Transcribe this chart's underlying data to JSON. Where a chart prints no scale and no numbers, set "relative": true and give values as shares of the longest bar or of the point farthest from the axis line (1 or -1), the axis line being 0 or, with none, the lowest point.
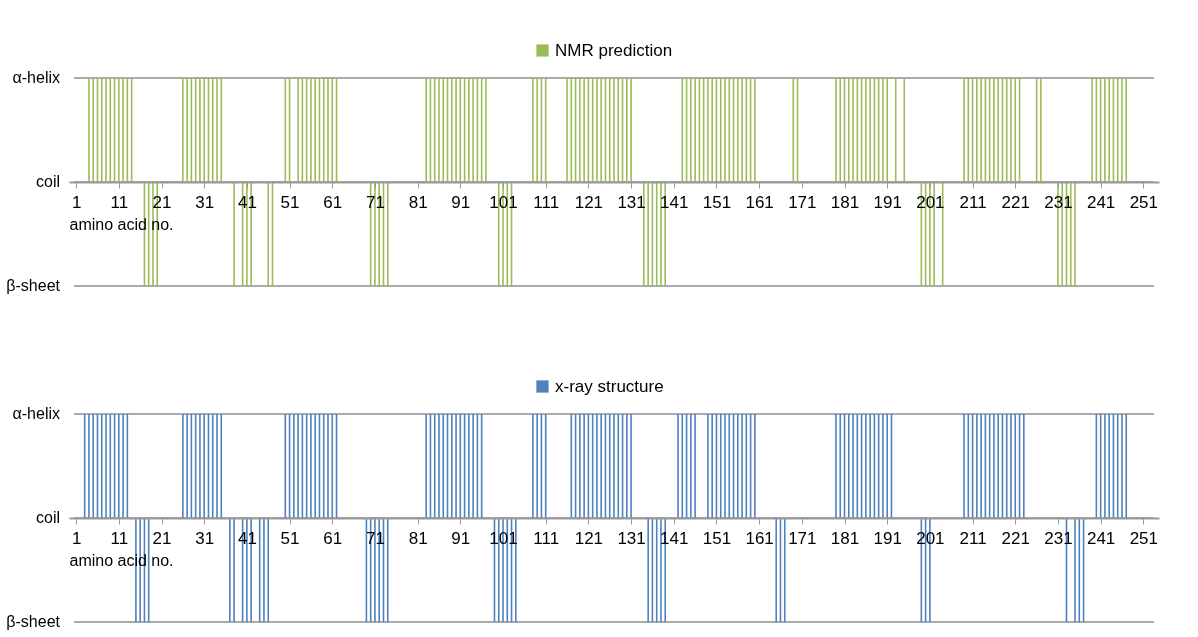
{
  "chart_data": [
    {
      "type": "bar",
      "xlabel": "amino acid no.",
      "legend": "top",
      "grid": "y",
      "relative": true,
      "xlim": [
        0.5,
        253.5
      ],
      "xticks": [
        1,
        11,
        21,
        31,
        41,
        51,
        61,
        71,
        81,
        91,
        101,
        111,
        121,
        131,
        141,
        151,
        161,
        171,
        181,
        191,
        201,
        211,
        221,
        231,
        241,
        251
      ],
      "annotations": [
        "α-helix",
        "coil",
        "β-sheet"
      ],
      "x": [
        1,
        2,
        3,
        4,
        5,
        6,
        7,
        8,
        9,
        10,
        11,
        12,
        13,
        14,
        15,
        16,
        17,
        18,
        19,
        20,
        21,
        22,
        23,
        24,
        25,
        26,
        27,
        28,
        29,
        30,
        31,
        32,
        33,
        34,
        35,
        36,
        37,
        38,
        39,
        40,
        41,
        42,
        43,
        44,
        45,
        46,
        47,
        48,
        49,
        50,
        51,
        52,
        53,
        54,
        55,
        56,
        57,
        58,
        59,
        60,
        61,
        62,
        63,
        64,
        65,
        66,
        67,
        68,
        69,
        70,
        71,
        72,
        73,
        74,
        75,
        76,
        77,
        78,
        79,
        80,
        81,
        82,
        83,
        84,
        85,
        86,
        87,
        88,
        89,
        90,
        91,
        92,
        93,
        94,
        95,
        96,
        97,
        98,
        99,
        100,
        101,
        102,
        103,
        104,
        105,
        106,
        107,
        108,
        109,
        110,
        111,
        112,
        113,
        114,
        115,
        116,
        117,
        118,
        119,
        120,
        121,
        122,
        123,
        124,
        125,
        126,
        127,
        128,
        129,
        130,
        131,
        132,
        133,
        134,
        135,
        136,
        137,
        138,
        139,
        140,
        141,
        142,
        143,
        144,
        145,
        146,
        147,
        148,
        149,
        150,
        151,
        152,
        153,
        154,
        155,
        156,
        157,
        158,
        159,
        160,
        161,
        162,
        163,
        164,
        165,
        166,
        167,
        168,
        169,
        170,
        171,
        172,
        173,
        174,
        175,
        176,
        177,
        178,
        179,
        180,
        181,
        182,
        183,
        184,
        185,
        186,
        187,
        188,
        189,
        190,
        191,
        192,
        193,
        194,
        195,
        196,
        197,
        198,
        199,
        200,
        201,
        202,
        203,
        204,
        205,
        206,
        207,
        208,
        209,
        210,
        211,
        212,
        213,
        214,
        215,
        216,
        217,
        218,
        219,
        220,
        221,
        222,
        223,
        224,
        225,
        226,
        227,
        228,
        229,
        230,
        231,
        232,
        233,
        234,
        235,
        236,
        237,
        238,
        239,
        240,
        241,
        242,
        243,
        244,
        245,
        246,
        247,
        248,
        249,
        250,
        251,
        252,
        253
      ],
      "series": [
        {
          "name": "NMR prediction",
          "color": "#9bbb59",
          "values": [
            0,
            0,
            0,
            1,
            1,
            1,
            1,
            1,
            1,
            1,
            1,
            1,
            1,
            1,
            0,
            0,
            -1,
            -1,
            -1,
            -1,
            0,
            0,
            0,
            0,
            0,
            1,
            1,
            1,
            1,
            1,
            1,
            1,
            1,
            1,
            1,
            0,
            0,
            -1,
            0,
            -1,
            -1,
            -1,
            0,
            0,
            0,
            -1,
            -1,
            0,
            0,
            1,
            1,
            0,
            1,
            1,
            1,
            1,
            1,
            1,
            1,
            1,
            1,
            1,
            0,
            0,
            0,
            0,
            0,
            0,
            0,
            -1,
            -1,
            -1,
            -1,
            -1,
            0,
            0,
            0,
            0,
            0,
            0,
            0,
            0,
            1,
            1,
            1,
            1,
            1,
            1,
            1,
            1,
            1,
            1,
            1,
            1,
            1,
            1,
            1,
            0,
            0,
            -1,
            -1,
            -1,
            -1,
            0,
            0,
            0,
            0,
            1,
            1,
            1,
            1,
            0,
            0,
            0,
            0,
            1,
            1,
            1,
            1,
            1,
            1,
            1,
            1,
            1,
            1,
            1,
            1,
            1,
            1,
            1,
            1,
            0,
            0,
            -1,
            -1,
            -1,
            -1,
            -1,
            -1,
            0,
            0,
            0,
            1,
            1,
            1,
            1,
            1,
            1,
            1,
            1,
            1,
            1,
            1,
            1,
            1,
            1,
            1,
            1,
            1,
            1,
            0,
            0,
            0,
            0,
            0,
            0,
            0,
            0,
            1,
            1,
            0,
            0,
            0,
            0,
            0,
            0,
            0,
            0,
            1,
            1,
            1,
            1,
            1,
            1,
            1,
            1,
            1,
            1,
            1,
            1,
            1,
            0,
            1,
            0,
            1,
            0,
            0,
            0,
            -1,
            -1,
            -1,
            -1,
            0,
            -1,
            0,
            0,
            0,
            0,
            1,
            1,
            1,
            1,
            1,
            1,
            1,
            1,
            1,
            1,
            1,
            1,
            1,
            1,
            0,
            0,
            0,
            1,
            1,
            0,
            0,
            0,
            -1,
            -1,
            -1,
            -1,
            -1,
            0,
            0,
            0,
            1,
            1,
            1,
            1,
            1,
            1,
            1,
            1,
            1,
            0,
            0,
            0,
            0,
            0,
            0
          ]
        }
      ]
    },
    {
      "type": "bar",
      "xlabel": "amino acid no.",
      "legend": "top",
      "grid": "y",
      "relative": true,
      "xlim": [
        0.5,
        253.5
      ],
      "xticks": [
        1,
        11,
        21,
        31,
        41,
        51,
        61,
        71,
        81,
        91,
        101,
        111,
        121,
        131,
        141,
        151,
        161,
        171,
        181,
        191,
        201,
        211,
        221,
        231,
        241,
        251
      ],
      "annotations": [
        "α-helix",
        "coil",
        "β-sheet"
      ],
      "x": [
        1,
        2,
        3,
        4,
        5,
        6,
        7,
        8,
        9,
        10,
        11,
        12,
        13,
        14,
        15,
        16,
        17,
        18,
        19,
        20,
        21,
        22,
        23,
        24,
        25,
        26,
        27,
        28,
        29,
        30,
        31,
        32,
        33,
        34,
        35,
        36,
        37,
        38,
        39,
        40,
        41,
        42,
        43,
        44,
        45,
        46,
        47,
        48,
        49,
        50,
        51,
        52,
        53,
        54,
        55,
        56,
        57,
        58,
        59,
        60,
        61,
        62,
        63,
        64,
        65,
        66,
        67,
        68,
        69,
        70,
        71,
        72,
        73,
        74,
        75,
        76,
        77,
        78,
        79,
        80,
        81,
        82,
        83,
        84,
        85,
        86,
        87,
        88,
        89,
        90,
        91,
        92,
        93,
        94,
        95,
        96,
        97,
        98,
        99,
        100,
        101,
        102,
        103,
        104,
        105,
        106,
        107,
        108,
        109,
        110,
        111,
        112,
        113,
        114,
        115,
        116,
        117,
        118,
        119,
        120,
        121,
        122,
        123,
        124,
        125,
        126,
        127,
        128,
        129,
        130,
        131,
        132,
        133,
        134,
        135,
        136,
        137,
        138,
        139,
        140,
        141,
        142,
        143,
        144,
        145,
        146,
        147,
        148,
        149,
        150,
        151,
        152,
        153,
        154,
        155,
        156,
        157,
        158,
        159,
        160,
        161,
        162,
        163,
        164,
        165,
        166,
        167,
        168,
        169,
        170,
        171,
        172,
        173,
        174,
        175,
        176,
        177,
        178,
        179,
        180,
        181,
        182,
        183,
        184,
        185,
        186,
        187,
        188,
        189,
        190,
        191,
        192,
        193,
        194,
        195,
        196,
        197,
        198,
        199,
        200,
        201,
        202,
        203,
        204,
        205,
        206,
        207,
        208,
        209,
        210,
        211,
        212,
        213,
        214,
        215,
        216,
        217,
        218,
        219,
        220,
        221,
        222,
        223,
        224,
        225,
        226,
        227,
        228,
        229,
        230,
        231,
        232,
        233,
        234,
        235,
        236,
        237,
        238,
        239,
        240,
        241,
        242,
        243,
        244,
        245,
        246,
        247,
        248,
        249,
        250,
        251,
        252,
        253
      ],
      "series": [
        {
          "name": "x-ray structure",
          "color": "#4f81bd",
          "values": [
            0,
            0,
            1,
            1,
            1,
            1,
            1,
            1,
            1,
            1,
            1,
            1,
            1,
            0,
            -1,
            -1,
            -1,
            -1,
            0,
            0,
            0,
            0,
            0,
            0,
            0,
            1,
            1,
            1,
            1,
            1,
            1,
            1,
            1,
            1,
            1,
            0,
            -1,
            -1,
            0,
            -1,
            -1,
            -1,
            0,
            -1,
            -1,
            -1,
            0,
            0,
            0,
            1,
            1,
            1,
            1,
            1,
            1,
            1,
            1,
            1,
            1,
            1,
            1,
            1,
            0,
            0,
            0,
            0,
            0,
            0,
            -1,
            -1,
            -1,
            -1,
            -1,
            -1,
            0,
            0,
            0,
            0,
            0,
            0,
            0,
            0,
            1,
            1,
            1,
            1,
            1,
            1,
            1,
            1,
            1,
            1,
            1,
            1,
            1,
            1,
            0,
            0,
            -1,
            -1,
            -1,
            -1,
            -1,
            -1,
            0,
            0,
            0,
            1,
            1,
            1,
            1,
            0,
            0,
            0,
            0,
            0,
            1,
            1,
            1,
            1,
            1,
            1,
            1,
            1,
            1,
            1,
            1,
            1,
            1,
            1,
            1,
            0,
            0,
            0,
            -1,
            -1,
            -1,
            -1,
            -1,
            0,
            0,
            1,
            1,
            1,
            1,
            1,
            0,
            0,
            1,
            1,
            1,
            1,
            1,
            1,
            1,
            1,
            1,
            1,
            1,
            1,
            0,
            0,
            0,
            0,
            -1,
            -1,
            -1,
            0,
            0,
            0,
            0,
            0,
            0,
            0,
            0,
            0,
            0,
            0,
            1,
            1,
            1,
            1,
            1,
            1,
            1,
            1,
            1,
            1,
            1,
            1,
            1,
            1,
            0,
            0,
            0,
            0,
            0,
            0,
            -1,
            -1,
            -1,
            0,
            0,
            0,
            0,
            0,
            0,
            0,
            1,
            1,
            1,
            1,
            1,
            1,
            1,
            1,
            1,
            1,
            1,
            1,
            1,
            1,
            1,
            0,
            0,
            0,
            0,
            0,
            0,
            0,
            0,
            0,
            -1,
            0,
            -1,
            -1,
            -1,
            0,
            0,
            1,
            1,
            1,
            1,
            1,
            1,
            1,
            1,
            0,
            0,
            0,
            0,
            0,
            0
          ]
        }
      ]
    }
  ]
}
